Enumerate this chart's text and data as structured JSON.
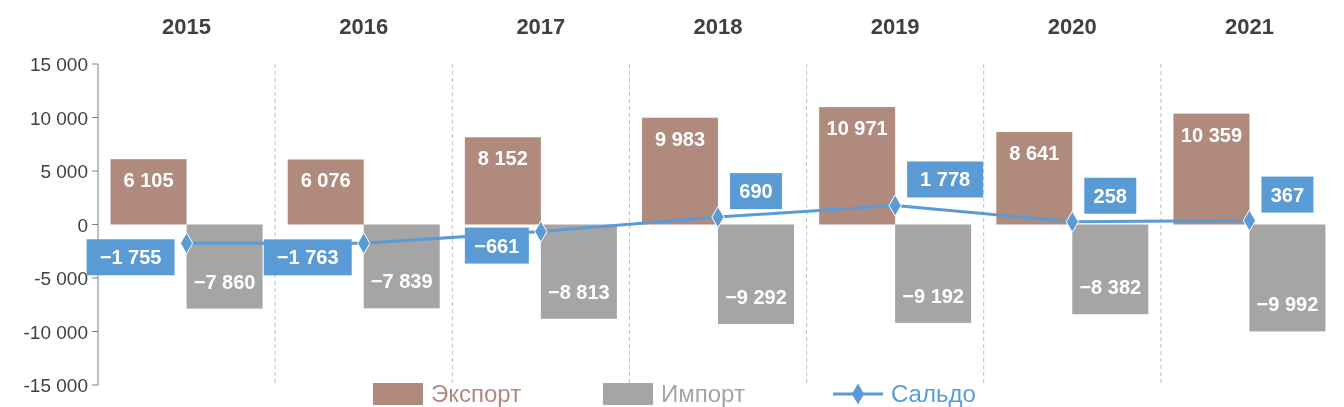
{
  "chart_data": {
    "type": "bar",
    "categories": [
      "2015",
      "2016",
      "2017",
      "2018",
      "2019",
      "2020",
      "2021"
    ],
    "series": [
      {
        "name": "Экспорт",
        "color": "#b08a7c",
        "values": [
          6105,
          6076,
          8152,
          9983,
          10971,
          8641,
          10359
        ],
        "value_labels": [
          "6 105",
          "6 076",
          "8 152",
          "9 983",
          "10 971",
          "8 641",
          "10 359"
        ]
      },
      {
        "name": "Импорт",
        "color": "#a5a5a5",
        "values": [
          -7860,
          -7839,
          -8813,
          -9292,
          -9192,
          -8382,
          -9992
        ],
        "value_labels": [
          "−7 860",
          "−7 839",
          "−8 813",
          "−9 292",
          "−9 192",
          "−8 382",
          "−9 992"
        ]
      },
      {
        "name": "Сальдо",
        "type": "line",
        "color": "#5b9bd5",
        "values": [
          -1755,
          -1763,
          -661,
          690,
          1778,
          258,
          367
        ],
        "value_labels": [
          "−1 755",
          "−1 763",
          "−661",
          "690",
          "1 778",
          "258",
          "367"
        ]
      }
    ],
    "ylim": [
      -15000,
      15000
    ],
    "yticks": [
      {
        "value": -15000,
        "label": "-15 000"
      },
      {
        "value": -10000,
        "label": "-10 000"
      },
      {
        "value": -5000,
        "label": "-5 000"
      },
      0,
      {
        "value": 5000,
        "label": "5 000"
      },
      {
        "value": 10000,
        "label": "10 000"
      },
      {
        "value": 15000,
        "label": "15 000"
      }
    ],
    "grid": "x",
    "legend": "bottom",
    "marker": "diamond",
    "line_style": "solid"
  }
}
